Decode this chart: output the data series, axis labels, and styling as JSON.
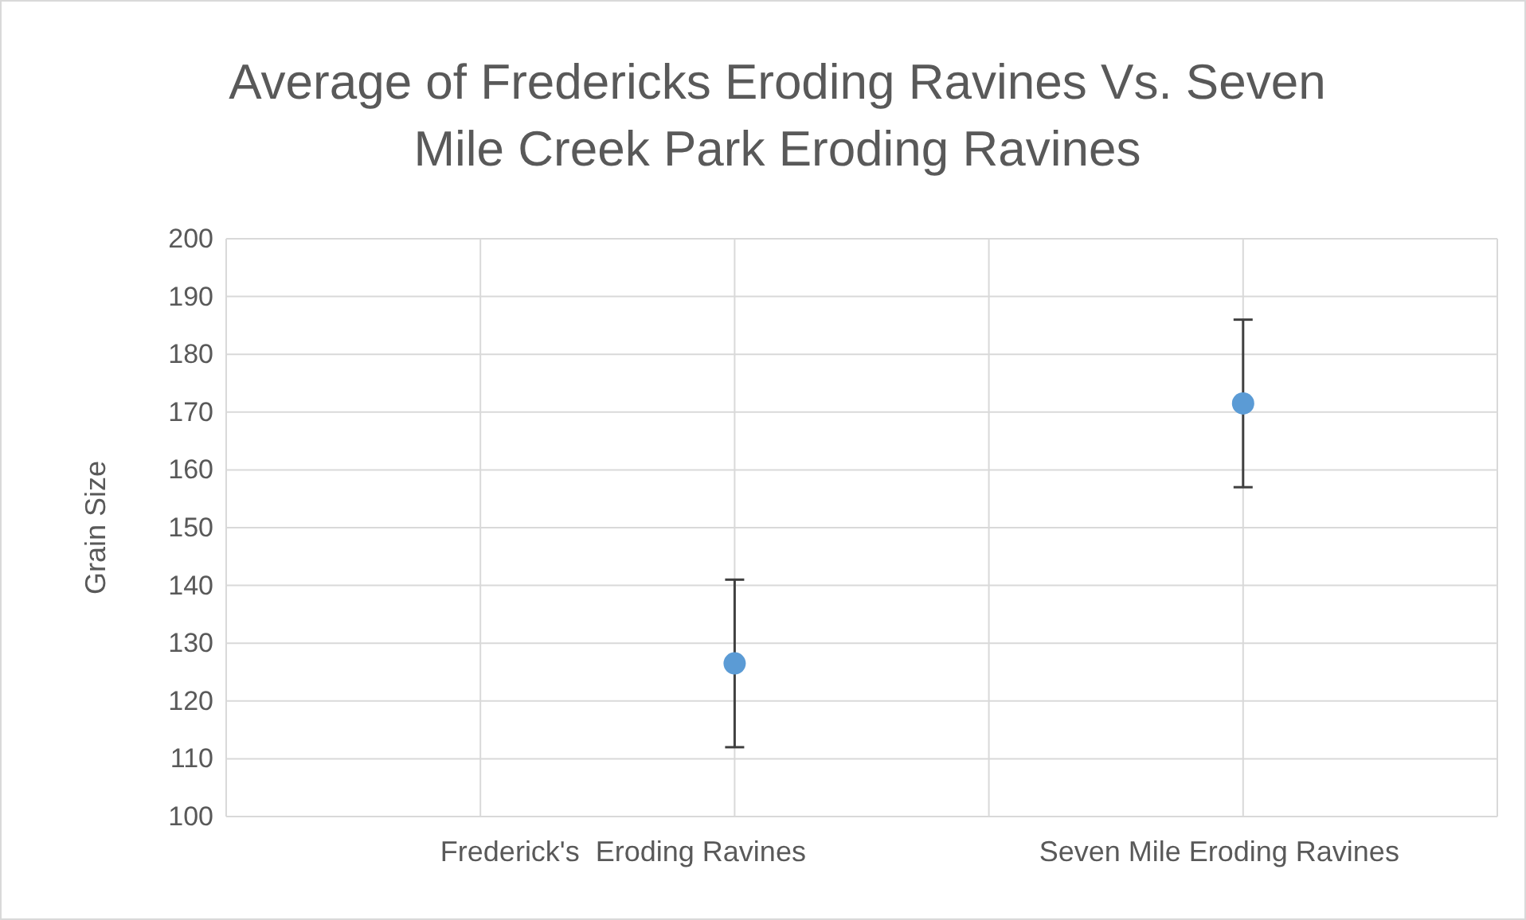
{
  "chart_data": {
    "type": "scatter",
    "title": "Average of Fredericks Eroding Ravines Vs. Seven Mile Creek Park Eroding Ravines",
    "ylabel": "Grain Size",
    "categories": [
      "Frederick's  Eroding Ravines",
      "Seven Mile Eroding Ravines"
    ],
    "series": [
      {
        "color": "#5b9bd5",
        "values": [
          126.5,
          171.5
        ],
        "errors": [
          14.5,
          14.5
        ]
      }
    ],
    "ylim": [
      100,
      200
    ],
    "yticks": [
      100,
      110,
      120,
      130,
      140,
      150,
      160,
      170,
      180,
      190,
      200
    ],
    "grid": true,
    "marker": "circle"
  }
}
